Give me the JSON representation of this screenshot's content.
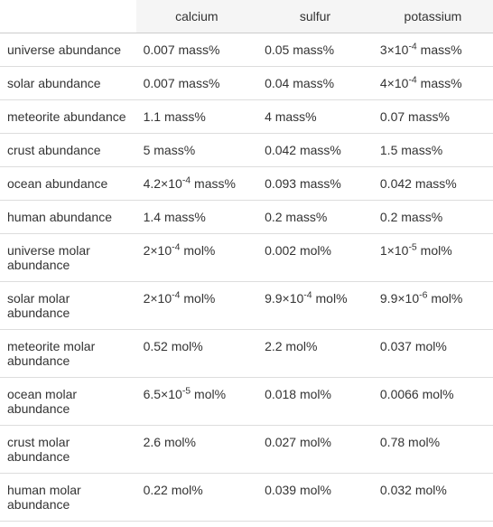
{
  "table": {
    "columns": [
      "",
      "calcium",
      "sulfur",
      "potassium"
    ],
    "rows": [
      {
        "label": "universe abundance",
        "calcium": "0.007 mass%",
        "sulfur": "0.05 mass%",
        "potassium": "3×10⁻⁴ mass%"
      },
      {
        "label": "solar abundance",
        "calcium": "0.007 mass%",
        "sulfur": "0.04 mass%",
        "potassium": "4×10⁻⁴ mass%"
      },
      {
        "label": "meteorite abundance",
        "calcium": "1.1 mass%",
        "sulfur": "4 mass%",
        "potassium": "0.07 mass%"
      },
      {
        "label": "crust abundance",
        "calcium": "5 mass%",
        "sulfur": "0.042 mass%",
        "potassium": "1.5 mass%"
      },
      {
        "label": "ocean abundance",
        "calcium": "4.2×10⁻⁴ mass%",
        "sulfur": "0.093 mass%",
        "potassium": "0.042 mass%"
      },
      {
        "label": "human abundance",
        "calcium": "1.4 mass%",
        "sulfur": "0.2 mass%",
        "potassium": "0.2 mass%"
      },
      {
        "label": "universe molar abundance",
        "calcium": "2×10⁻⁴ mol%",
        "sulfur": "0.002 mol%",
        "potassium": "1×10⁻⁵ mol%"
      },
      {
        "label": "solar molar abundance",
        "calcium": "2×10⁻⁴ mol%",
        "sulfur": "9.9×10⁻⁴ mol%",
        "potassium": "9.9×10⁻⁶ mol%"
      },
      {
        "label": "meteorite molar abundance",
        "calcium": "0.52 mol%",
        "sulfur": "2.2 mol%",
        "potassium": "0.037 mol%"
      },
      {
        "label": "ocean molar abundance",
        "calcium": "6.5×10⁻⁵ mol%",
        "sulfur": "0.018 mol%",
        "potassium": "0.0066 mol%"
      },
      {
        "label": "crust molar abundance",
        "calcium": "2.6 mol%",
        "sulfur": "0.027 mol%",
        "potassium": "0.78 mol%"
      },
      {
        "label": "human molar abundance",
        "calcium": "0.22 mol%",
        "sulfur": "0.039 mol%",
        "potassium": "0.032 mol%"
      }
    ]
  }
}
